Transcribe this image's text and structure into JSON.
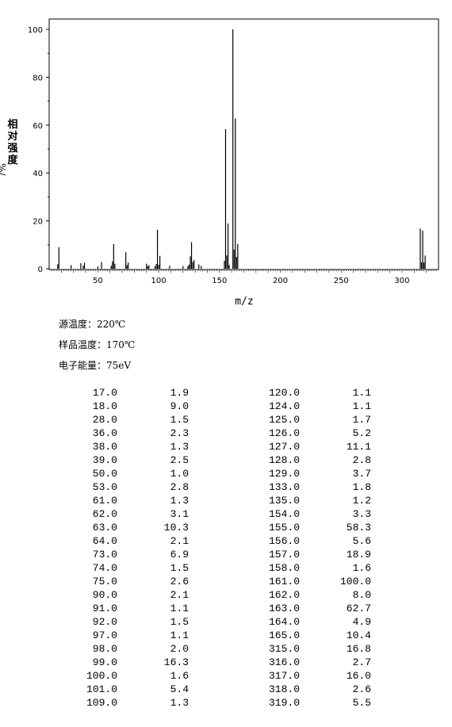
{
  "chart_data": {
    "type": "bar",
    "xlabel": "m/z",
    "ylabel_chars": [
      "相",
      "对",
      "强",
      "度"
    ],
    "ylabel_unit": "%/",
    "xlim": [
      10,
      330
    ],
    "ylim": [
      0,
      100
    ],
    "x_ticks": [
      50,
      100,
      150,
      200,
      250,
      300
    ],
    "y_ticks": [
      0,
      20,
      40,
      60,
      80,
      100
    ],
    "series": [
      {
        "x": [
          17.0,
          18.0,
          28.0,
          36.0,
          38.0,
          39.0,
          50.0,
          53.0,
          61.0,
          62.0,
          63.0,
          64.0,
          73.0,
          74.0,
          75.0,
          90.0,
          91.0,
          92.0,
          97.0,
          98.0,
          99.0,
          100.0,
          101.0,
          109.0,
          120.0,
          124.0,
          125.0,
          126.0,
          127.0,
          128.0,
          129.0,
          133.0,
          135.0,
          154.0,
          155.0,
          156.0,
          157.0,
          158.0,
          161.0,
          162.0,
          163.0,
          164.0,
          165.0,
          315.0,
          316.0,
          317.0,
          318.0,
          319.0
        ],
        "values": [
          1.9,
          9.0,
          1.5,
          2.3,
          1.3,
          2.5,
          1.0,
          2.8,
          1.3,
          3.1,
          10.3,
          2.1,
          6.9,
          1.5,
          2.6,
          2.1,
          1.1,
          1.5,
          1.1,
          2.0,
          16.3,
          1.6,
          5.4,
          1.3,
          1.1,
          1.1,
          1.7,
          5.2,
          11.1,
          2.8,
          3.7,
          1.8,
          1.2,
          3.3,
          58.3,
          5.6,
          18.9,
          1.6,
          100.0,
          8.0,
          62.7,
          4.9,
          10.4,
          16.8,
          2.7,
          16.0,
          2.6,
          5.5
        ]
      }
    ]
  },
  "params": {
    "source_temp": "源温度：220℃",
    "sample_temp": "样品温度：170℃",
    "electron_energy": "电子能量：75eV"
  },
  "peak_table_left": [
    [
      "17.0",
      "1.9"
    ],
    [
      "18.0",
      "9.0"
    ],
    [
      "28.0",
      "1.5"
    ],
    [
      "36.0",
      "2.3"
    ],
    [
      "38.0",
      "1.3"
    ],
    [
      "39.0",
      "2.5"
    ],
    [
      "50.0",
      "1.0"
    ],
    [
      "53.0",
      "2.8"
    ],
    [
      "61.0",
      "1.3"
    ],
    [
      "62.0",
      "3.1"
    ],
    [
      "63.0",
      "10.3"
    ],
    [
      "64.0",
      "2.1"
    ],
    [
      "73.0",
      "6.9"
    ],
    [
      "74.0",
      "1.5"
    ],
    [
      "75.0",
      "2.6"
    ],
    [
      "90.0",
      "2.1"
    ],
    [
      "91.0",
      "1.1"
    ],
    [
      "92.0",
      "1.5"
    ],
    [
      "97.0",
      "1.1"
    ],
    [
      "98.0",
      "2.0"
    ],
    [
      "99.0",
      "16.3"
    ],
    [
      "100.0",
      "1.6"
    ],
    [
      "101.0",
      "5.4"
    ],
    [
      "109.0",
      "1.3"
    ]
  ],
  "peak_table_right": [
    [
      "120.0",
      "1.1"
    ],
    [
      "124.0",
      "1.1"
    ],
    [
      "125.0",
      "1.7"
    ],
    [
      "126.0",
      "5.2"
    ],
    [
      "127.0",
      "11.1"
    ],
    [
      "128.0",
      "2.8"
    ],
    [
      "129.0",
      "3.7"
    ],
    [
      "133.0",
      "1.8"
    ],
    [
      "135.0",
      "1.2"
    ],
    [
      "154.0",
      "3.3"
    ],
    [
      "155.0",
      "58.3"
    ],
    [
      "156.0",
      "5.6"
    ],
    [
      "157.0",
      "18.9"
    ],
    [
      "158.0",
      "1.6"
    ],
    [
      "161.0",
      "100.0"
    ],
    [
      "162.0",
      "8.0"
    ],
    [
      "163.0",
      "62.7"
    ],
    [
      "164.0",
      "4.9"
    ],
    [
      "165.0",
      "10.4"
    ],
    [
      "315.0",
      "16.8"
    ],
    [
      "316.0",
      "2.7"
    ],
    [
      "317.0",
      "16.0"
    ],
    [
      "318.0",
      "2.6"
    ],
    [
      "319.0",
      "5.5"
    ]
  ]
}
